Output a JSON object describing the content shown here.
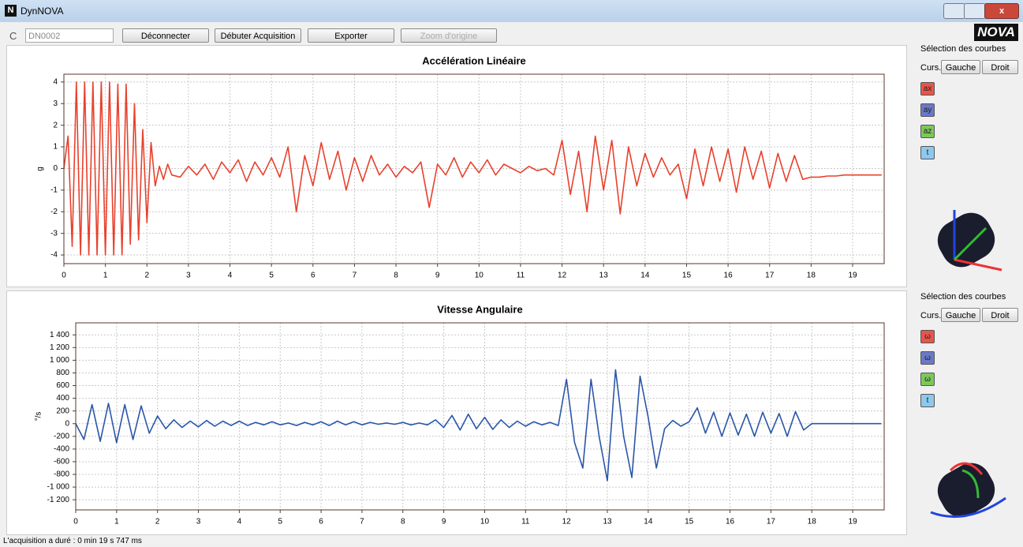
{
  "window": {
    "title": "DynNOVA",
    "logo": "NOVA",
    "device": "DN0002",
    "buttons": [
      "Déconnecter",
      "Débuter Acquisition",
      "Exporter",
      "Zoom d'origine"
    ],
    "status": "L'acquisition a duré : 0 min 19 s 747 ms"
  },
  "panels": [
    {
      "title": "Sélection des courbes",
      "cursor": "Curs.",
      "left": "Gauche",
      "right": "Droit",
      "buttons": [
        "ay",
        "az",
        "t"
      ]
    },
    {
      "title": "Sélection des courbes",
      "cursor": "Curs.",
      "left": "Gauche",
      "right": "Droit",
      "buttons": [
        "ω",
        "ω",
        "t"
      ]
    }
  ],
  "chart_data": [
    {
      "type": "line",
      "title": "Accélération Linéaire",
      "y_label": "g",
      "xlim": [
        0,
        19.76
      ],
      "ylim": [
        -4.4,
        4.36
      ],
      "xticks": [
        0,
        1,
        2,
        3,
        4,
        5,
        6,
        7,
        8,
        9,
        10,
        11,
        12,
        13,
        14,
        15,
        16,
        17,
        18,
        19
      ],
      "yticks": [
        -4,
        -3,
        -2,
        -1,
        0,
        1,
        2,
        3,
        4
      ],
      "grid": true,
      "x": [
        0,
        0.1,
        0.2,
        0.3,
        0.4,
        0.5,
        0.6,
        0.7,
        0.8,
        0.9,
        1.0,
        1.1,
        1.2,
        1.3,
        1.4,
        1.5,
        1.6,
        1.7,
        1.8,
        1.9,
        2.0,
        2.1,
        2.2,
        2.3,
        2.4,
        2.5,
        2.6,
        2.8,
        3.0,
        3.2,
        3.4,
        3.6,
        3.8,
        4.0,
        4.2,
        4.4,
        4.6,
        4.8,
        5.0,
        5.2,
        5.4,
        5.6,
        5.8,
        6.0,
        6.2,
        6.4,
        6.6,
        6.8,
        7.0,
        7.2,
        7.4,
        7.6,
        7.8,
        8.0,
        8.2,
        8.4,
        8.6,
        8.8,
        9.0,
        9.2,
        9.4,
        9.6,
        9.8,
        10.0,
        10.2,
        10.4,
        10.6,
        10.8,
        11.0,
        11.2,
        11.4,
        11.6,
        11.8,
        12.0,
        12.2,
        12.4,
        12.6,
        12.8,
        13.0,
        13.2,
        13.4,
        13.6,
        13.8,
        14.0,
        14.2,
        14.4,
        14.6,
        14.8,
        15.0,
        15.2,
        15.4,
        15.6,
        15.8,
        16.0,
        16.2,
        16.4,
        16.6,
        16.8,
        17.0,
        17.2,
        17.4,
        17.6,
        17.8,
        18.0,
        18.2,
        18.4,
        18.6,
        18.8,
        19.0,
        19.2,
        19.4,
        19.6,
        19.7
      ],
      "series": [
        {
          "name": "ax",
          "color": "#e8402c",
          "values": [
            0,
            1.5,
            -3.6,
            4,
            -4,
            4,
            -4,
            4,
            -4,
            4,
            -4,
            4,
            -4,
            3.9,
            -4,
            3.9,
            -3.5,
            3,
            -3.3,
            1.8,
            -2.5,
            1.2,
            -0.8,
            0.1,
            -0.5,
            0.2,
            -0.3,
            -0.4,
            0.1,
            -0.3,
            0.2,
            -0.5,
            0.3,
            -0.2,
            0.4,
            -0.6,
            0.3,
            -0.3,
            0.5,
            -0.4,
            1.0,
            -2.0,
            0.6,
            -0.8,
            1.2,
            -0.5,
            0.8,
            -1.0,
            0.5,
            -0.6,
            0.6,
            -0.3,
            0.2,
            -0.4,
            0.1,
            -0.2,
            0.3,
            -1.8,
            0.2,
            -0.3,
            0.5,
            -0.4,
            0.3,
            -0.2,
            0.4,
            -0.3,
            0.2,
            0,
            -0.2,
            0.1,
            -0.1,
            0,
            -0.3,
            1.3,
            -1.2,
            0.8,
            -2.0,
            1.5,
            -1.0,
            1.3,
            -2.1,
            1.0,
            -0.8,
            0.7,
            -0.4,
            0.5,
            -0.3,
            0.2,
            -1.4,
            0.9,
            -0.8,
            1.0,
            -0.6,
            0.9,
            -1.1,
            1.0,
            -0.5,
            0.8,
            -0.9,
            0.7,
            -0.6,
            0.6,
            -0.5,
            -0.4,
            -0.4,
            -0.35,
            -0.35,
            -0.3,
            -0.3,
            -0.3,
            -0.3,
            -0.3,
            -0.3
          ]
        }
      ]
    },
    {
      "type": "line",
      "title": "Vitesse Angulaire",
      "y_label": "°/s",
      "xlim": [
        0,
        19.77
      ],
      "ylim": [
        -1360,
        1590
      ],
      "xticks": [
        0,
        1,
        2,
        3,
        4,
        5,
        6,
        7,
        8,
        9,
        10,
        11,
        12,
        13,
        14,
        15,
        16,
        17,
        18,
        19
      ],
      "yticks": [
        {
          "value": -1200,
          "label": "-1 200"
        },
        {
          "value": -1000,
          "label": "-1 000"
        },
        -800,
        -600,
        -400,
        -200,
        0,
        200,
        400,
        600,
        800,
        {
          "value": 1000,
          "label": "1 000"
        },
        {
          "value": 1200,
          "label": "1 200"
        },
        {
          "value": 1400,
          "label": "1 400"
        }
      ],
      "grid": true,
      "x": [
        0,
        0.2,
        0.4,
        0.6,
        0.8,
        1.0,
        1.2,
        1.4,
        1.6,
        1.8,
        2.0,
        2.2,
        2.4,
        2.6,
        2.8,
        3.0,
        3.2,
        3.4,
        3.6,
        3.8,
        4.0,
        4.2,
        4.4,
        4.6,
        4.8,
        5.0,
        5.2,
        5.4,
        5.6,
        5.8,
        6.0,
        6.2,
        6.4,
        6.6,
        6.8,
        7.0,
        7.2,
        7.4,
        7.6,
        7.8,
        8.0,
        8.2,
        8.4,
        8.6,
        8.8,
        9.0,
        9.2,
        9.4,
        9.6,
        9.8,
        10.0,
        10.2,
        10.4,
        10.6,
        10.8,
        11.0,
        11.2,
        11.4,
        11.6,
        11.8,
        12.0,
        12.2,
        12.4,
        12.6,
        12.8,
        13.0,
        13.2,
        13.4,
        13.6,
        13.8,
        14.0,
        14.2,
        14.4,
        14.6,
        14.8,
        15.0,
        15.2,
        15.4,
        15.6,
        15.8,
        16.0,
        16.2,
        16.4,
        16.6,
        16.8,
        17.0,
        17.2,
        17.4,
        17.6,
        17.8,
        18.0,
        18.2,
        18.4,
        18.6,
        18.8,
        19.0,
        19.2,
        19.4,
        19.6,
        19.7
      ],
      "series": [
        {
          "name": "ω",
          "color": "#2a56a8",
          "values": [
            0,
            -250,
            300,
            -280,
            320,
            -300,
            300,
            -250,
            280,
            -150,
            120,
            -80,
            60,
            -60,
            40,
            -50,
            50,
            -40,
            40,
            -30,
            40,
            -30,
            20,
            -20,
            30,
            -20,
            10,
            -30,
            20,
            -20,
            30,
            -30,
            40,
            -20,
            30,
            -20,
            20,
            -10,
            10,
            -10,
            20,
            -20,
            10,
            -20,
            60,
            -60,
            130,
            -100,
            150,
            -80,
            100,
            -90,
            60,
            -60,
            40,
            -40,
            30,
            -20,
            20,
            -30,
            700,
            -300,
            -700,
            700,
            -200,
            -900,
            850,
            -200,
            -850,
            750,
            100,
            -700,
            -80,
            50,
            -40,
            30,
            250,
            -150,
            180,
            -200,
            170,
            -180,
            150,
            -200,
            180,
            -150,
            160,
            -200,
            190,
            -100,
            0,
            0,
            0,
            0,
            0,
            0,
            0,
            0,
            0,
            0
          ]
        }
      ]
    }
  ]
}
